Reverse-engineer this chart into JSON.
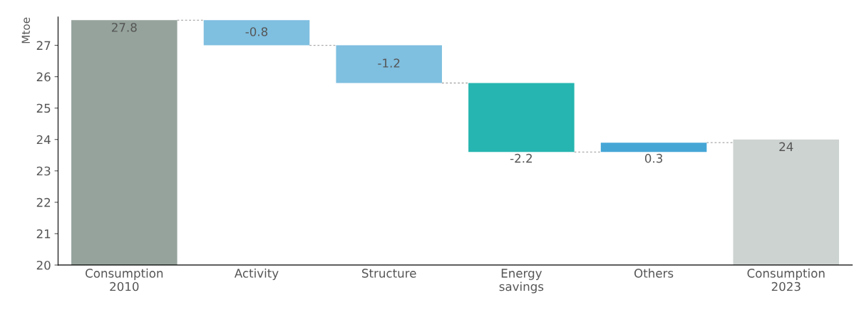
{
  "chart_data": {
    "type": "bar",
    "ylabel": "Mtoe",
    "categories": [
      "Consumption\n2010",
      "Activity",
      "Structure",
      "Energy\nsavings",
      "Others",
      "Consumption\n2023"
    ],
    "values": [
      27.8,
      -0.8,
      -1.2,
      -2.2,
      0.3,
      24
    ],
    "base": [
      null,
      27.8,
      27.0,
      25.8,
      23.6,
      null
    ],
    "colors": [
      "#95a39c",
      "#7fbfe0",
      "#7fbfe0",
      "#26b5b0",
      "#45a6d6",
      "#cdd3d0"
    ],
    "ylim": [
      20,
      27.9
    ],
    "yticks": [
      20,
      21,
      22,
      23,
      24,
      25,
      26,
      27
    ],
    "data_labels": true,
    "grid": false,
    "legend": false
  }
}
